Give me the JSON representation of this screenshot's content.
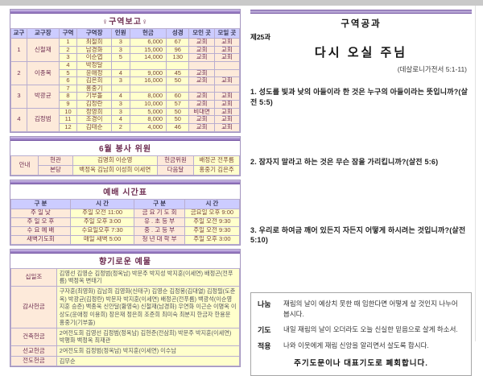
{
  "colors": {
    "accent_purple": "#9a7fc4",
    "header_lavender": "#ccccff",
    "cell_peach": "#fdeada",
    "cell_yellow": "#ffffcc",
    "title_plum": "#6d2c50"
  },
  "left": {
    "district_report": {
      "title": "♀구역보고♀",
      "headers": [
        "교구",
        "교구장",
        "구역",
        "구역장",
        "인원",
        "헌금",
        "성경",
        "모인 곳",
        "모일 곳"
      ],
      "groups": [
        {
          "district": "1",
          "leader": "신철재",
          "rows": [
            [
              "1",
              "최철희",
              "3",
              "6,000",
              "67",
              "교회",
              "교회"
            ],
            [
              "2",
              "남경화",
              "3",
              "15,000",
              "96",
              "교회",
              "교회"
            ],
            [
              "3",
              "이순엽",
              "5",
              "14,000",
              "130",
              "교회",
              "교회"
            ]
          ]
        },
        {
          "district": "2",
          "leader": "이종목",
          "rows": [
            [
              "4",
              "박정달",
              "",
              "",
              "",
              "",
              ""
            ],
            [
              "5",
              "윤애정",
              "4",
              "9,000",
              "45",
              "교회",
              ""
            ],
            [
              "6",
              "김은희",
              "3",
              "16,000",
              "50",
              "교회",
              "교회"
            ]
          ]
        },
        {
          "district": "3",
          "leader": "박광균",
          "rows": [
            [
              "7",
              "홍중기",
              "",
              "",
              "",
              "",
              ""
            ],
            [
              "8",
              "기부돌",
              "4",
              "8,000",
              "60",
              "교회",
              "교회"
            ],
            [
              "9",
              "김정란",
              "3",
              "10,000",
              "57",
              "교회",
              "교회"
            ]
          ]
        },
        {
          "district": "4",
          "leader": "김정범",
          "rows": [
            [
              "10",
              "정영희",
              "3",
              "5,000",
              "50",
              "비대면",
              "교회"
            ],
            [
              "11",
              "조경이",
              "4",
              "8,000",
              "50",
              "교회",
              "교회"
            ],
            [
              "12",
              "김태순",
              "2",
              "4,000",
              "46",
              "교회",
              "교회"
            ]
          ]
        }
      ]
    },
    "volunteers": {
      "title": "6월 봉사 위원",
      "side_label": "안내",
      "rows": [
        {
          "place": "현관",
          "names": "김명희 이순영",
          "right_label": "헌금위원",
          "right_names": "배정곤 전푸름"
        },
        {
          "place": "본당",
          "names": "백정옥 김남희 이성희 이세연",
          "right_label": "다음달",
          "right_names": "홍중기 김은주"
        }
      ]
    },
    "schedule": {
      "title": "예배 시간표",
      "headers": [
        "구  분",
        "시  간",
        "구  분",
        "시  간"
      ],
      "rows": [
        [
          "주 일  낮",
          "주일 오전  11:00",
          "금 요 기 도 회",
          "금요일 오후  9:00"
        ],
        [
          "주 일 오 후",
          "주일 오후  3:00",
          "유 . 초 등 부",
          "주일 오전  9:30"
        ],
        [
          "수 요 예 배",
          "수요일오후  7:30",
          "중 . 고 등 부",
          "주일 오전  9:30"
        ],
        [
          "새벽기도회",
          "매일 새벽  5:00",
          "청 년 대 학 부",
          "주일 오후  3:00"
        ]
      ]
    },
    "offerings": {
      "title": "향기로운 예물",
      "rows": [
        {
          "label": "십일조",
          "names": "김영선 김영순 김정범(정옥남) 박문주 박지성 박지훈(이세연) 배정곤(전푸름) 백정옥 변태기"
        },
        {
          "label": "감사헌금",
          "names": "구자훈(최영화) 김남희 김영화(신태구) 김영순 김정봉(김대열) 김정필(도춘옥) 박광균(김정란) 박문자 박지훈(이세연) 배정곤(전푸름) 백광석(이순영 지훈 승준) 백종욱 신안달(황영숙) 신철재(남경화) 우연화 이근순 이명옥 이상도(윤애정 이용희) 장은재 정은희 조준희 최미숙 최분지 한금자 한용문 홍중기(기부돌)"
        },
        {
          "label": "건축헌금",
          "names": "2여전도회 김영선 김정범(정옥남) 김현준(전삼희) 박문주 박지훈(이세연) 박평화 백정옥 최재관"
        },
        {
          "label": "선교헌금",
          "names": "2여전도회 김정범(정옥남) 박지훈(이세연) 이수남"
        },
        {
          "label": "전도헌금",
          "names": "김무순"
        }
      ]
    }
  },
  "right": {
    "header": "구역공과",
    "lesson_no": "제25과",
    "title": "다시 오실 주님",
    "scripture": "(데살로니가전서 5:1-11)",
    "questions": [
      "1. 성도를 빛과 낮의 아들이라 한 것은 누구의 아들이라는 뜻입니까?(살전 5:5)",
      "2. 잠자지 말라고 하는 것은 무슨 잠을 가리킵니까?(살전 5:6)",
      "3. 우리로 하여금 깨어 있든지 자든지 어떻게 하시려는 것입니까?(살전 5:10)"
    ],
    "closing": {
      "items": [
        {
          "label": "나눔",
          "text": "재림의 날이 예상치 못한 때 임한다면 어떻게 살 것인지 나누어 봅시다."
        },
        {
          "label": "기도",
          "text": "내일 재림의 날이 오더라도 오늘 신실한 믿음으로 살게 하소서."
        },
        {
          "label": "적용",
          "text": "나와 이웃에게 재림 신앙을 알리면서 살도록 합시다."
        }
      ],
      "footer": "주기도문이나 대표기도로 폐회합니다."
    }
  }
}
